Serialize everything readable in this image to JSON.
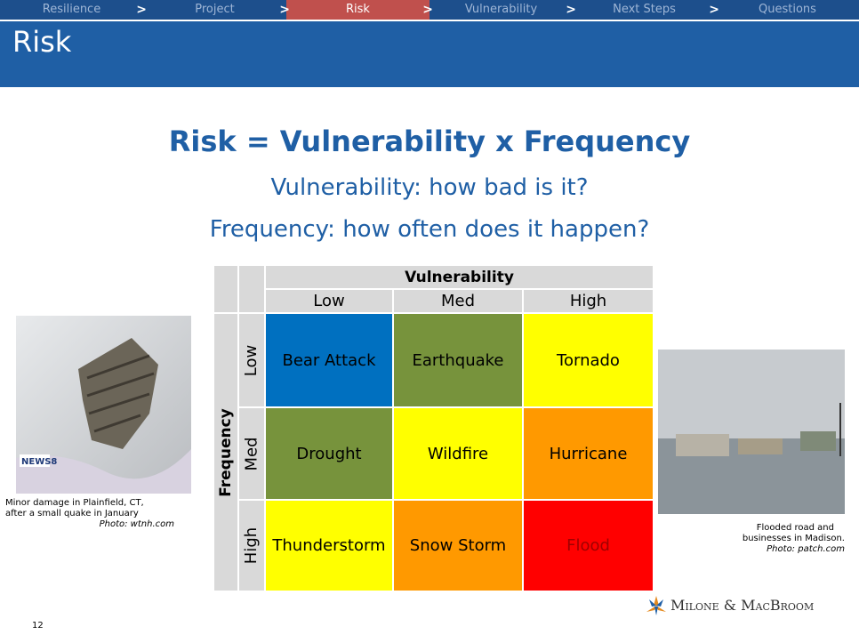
{
  "nav": {
    "tabs": [
      "Resilience",
      "Project",
      "Risk",
      "Vulnerability",
      "Next Steps",
      "Questions"
    ]
  },
  "header": {
    "title": "Risk"
  },
  "content": {
    "heading": "Risk = Vulnerability x Frequency",
    "lines": [
      "Vulnerability: how bad is it?",
      "Frequency: how often does it happen?"
    ]
  },
  "table": {
    "col_header": "Vulnerability",
    "row_header": "Frequency",
    "columns": [
      "Low",
      "Med",
      "High"
    ],
    "rows": [
      "Low",
      "Med",
      "High"
    ],
    "cells": [
      [
        "Bear Attack",
        "Earthquake",
        "Tornado"
      ],
      [
        "Drought",
        "Wildfire",
        "Hurricane"
      ],
      [
        "Thunderstorm",
        "Snow Storm",
        "Flood"
      ]
    ]
  },
  "left_image": {
    "badge": "NEWS8",
    "caption": [
      "Minor damage in Plainfield, CT,",
      "after a small quake in January"
    ],
    "credit": "Photo: wtnh.com"
  },
  "right_image": {
    "caption": [
      "Flooded road and",
      "businesses in Madison."
    ],
    "credit": "Photo: patch.com"
  },
  "footer": {
    "page": "12",
    "logo": "Milone & MacBroom"
  }
}
